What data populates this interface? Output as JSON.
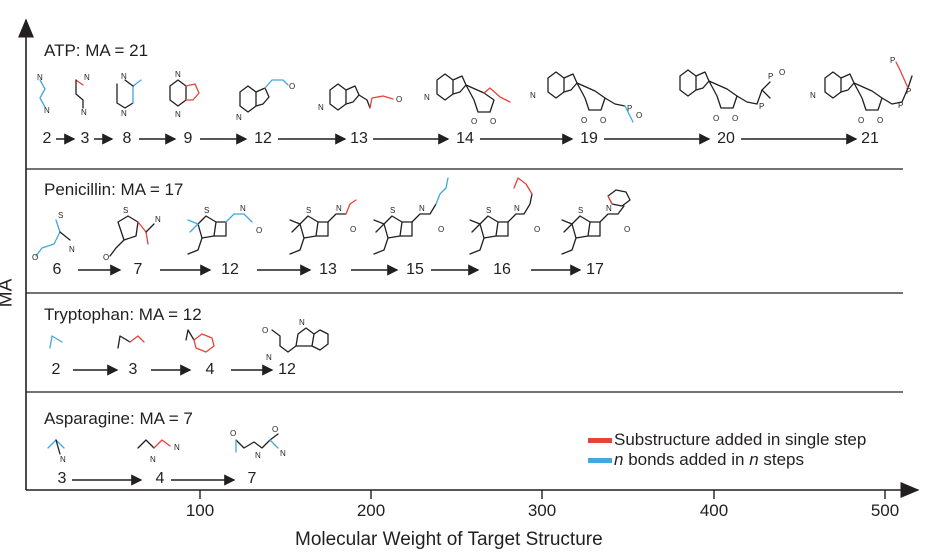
{
  "axes": {
    "x_label": "Molecular Weight of Target Structure",
    "y_label": "MA",
    "x_ticks": [
      "100",
      "200",
      "300",
      "400",
      "500"
    ]
  },
  "panels": [
    {
      "id": "atp",
      "title": "ATP: MA = 21",
      "steps": [
        "2",
        "3",
        "8",
        "9",
        "12",
        "13",
        "14",
        "19",
        "20",
        "21"
      ]
    },
    {
      "id": "penicillin",
      "title": "Penicillin: MA = 17",
      "steps": [
        "6",
        "7",
        "12",
        "13",
        "15",
        "16",
        "17"
      ]
    },
    {
      "id": "tryptophan",
      "title": "Tryptophan: MA = 12",
      "steps": [
        "2",
        "3",
        "4",
        "12"
      ]
    },
    {
      "id": "asparagine",
      "title": "Asparagine: MA = 7",
      "steps": [
        "3",
        "4",
        "7"
      ]
    }
  ],
  "legend": {
    "substructure": "Substructure added in single step",
    "n_bonds_prefix": "n",
    "n_bonds_suffix": " bonds added in ",
    "n_bonds_n": "n",
    "n_bonds_end": " steps"
  },
  "colors": {
    "substructure": "#e8423a",
    "n_bonds": "#3fa9e0",
    "line": "#231f20"
  },
  "atom_labels": {
    "N": "N",
    "O": "O",
    "S": "S",
    "P": "P"
  }
}
